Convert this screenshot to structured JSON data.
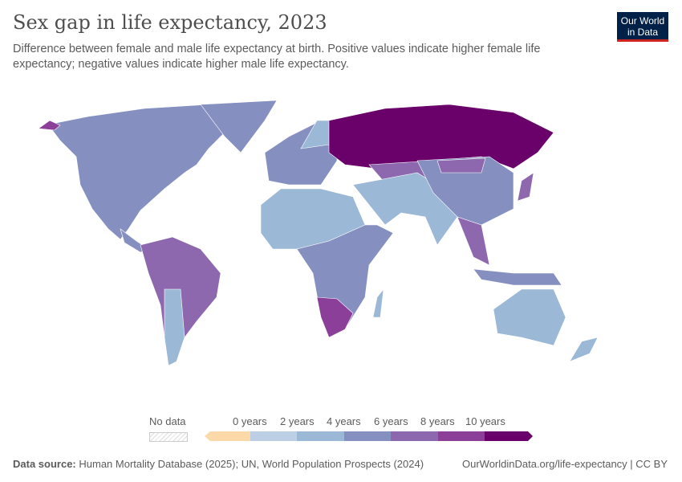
{
  "header": {
    "title": "Sex gap in life expectancy, 2023",
    "subtitle": "Difference between female and male life expectancy at birth. Positive values indicate higher female life expectancy; negative values indicate higher male life expectancy.",
    "logo": "Our World in Data"
  },
  "legend": {
    "no_data": "No data",
    "bins": [
      "0 years",
      "2 years",
      "4 years",
      "6 years",
      "8 years",
      "10 years"
    ],
    "colors": [
      "#fcd9a8",
      "#bccfe4",
      "#9bb8d6",
      "#8690c0",
      "#8d68ae",
      "#8b3f99",
      "#6a006a"
    ]
  },
  "footer": {
    "source_label": "Data source:",
    "source": "Human Mortality Database (2025); UN, World Population Prospects (2024)",
    "link": "OurWorldinData.org/life-expectancy | CC BY"
  }
}
